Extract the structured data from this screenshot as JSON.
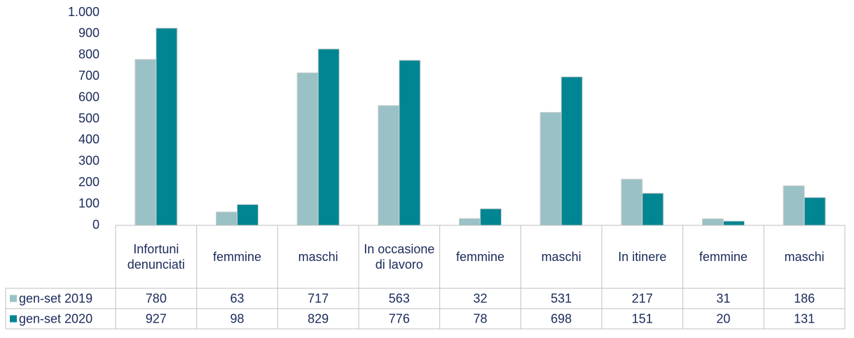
{
  "chart_data": {
    "type": "bar",
    "categories": [
      "Infortuni denunciati",
      "femmine",
      "maschi",
      "In occasione di lavoro",
      "femmine",
      "maschi",
      "In itinere",
      "femmine",
      "maschi"
    ],
    "series": [
      {
        "name": "gen-set 2019",
        "color": "#9ac1c6",
        "values": [
          780,
          63,
          717,
          563,
          32,
          531,
          217,
          31,
          186
        ]
      },
      {
        "name": "gen-set 2020",
        "color": "#008593",
        "values": [
          927,
          98,
          829,
          776,
          78,
          698,
          151,
          20,
          131
        ]
      }
    ],
    "ylim": [
      0,
      1000
    ],
    "yticks": [
      0,
      100,
      200,
      300,
      400,
      500,
      600,
      700,
      800,
      900,
      {
        "value": 1000,
        "label": "1.000"
      }
    ],
    "grid": false
  }
}
